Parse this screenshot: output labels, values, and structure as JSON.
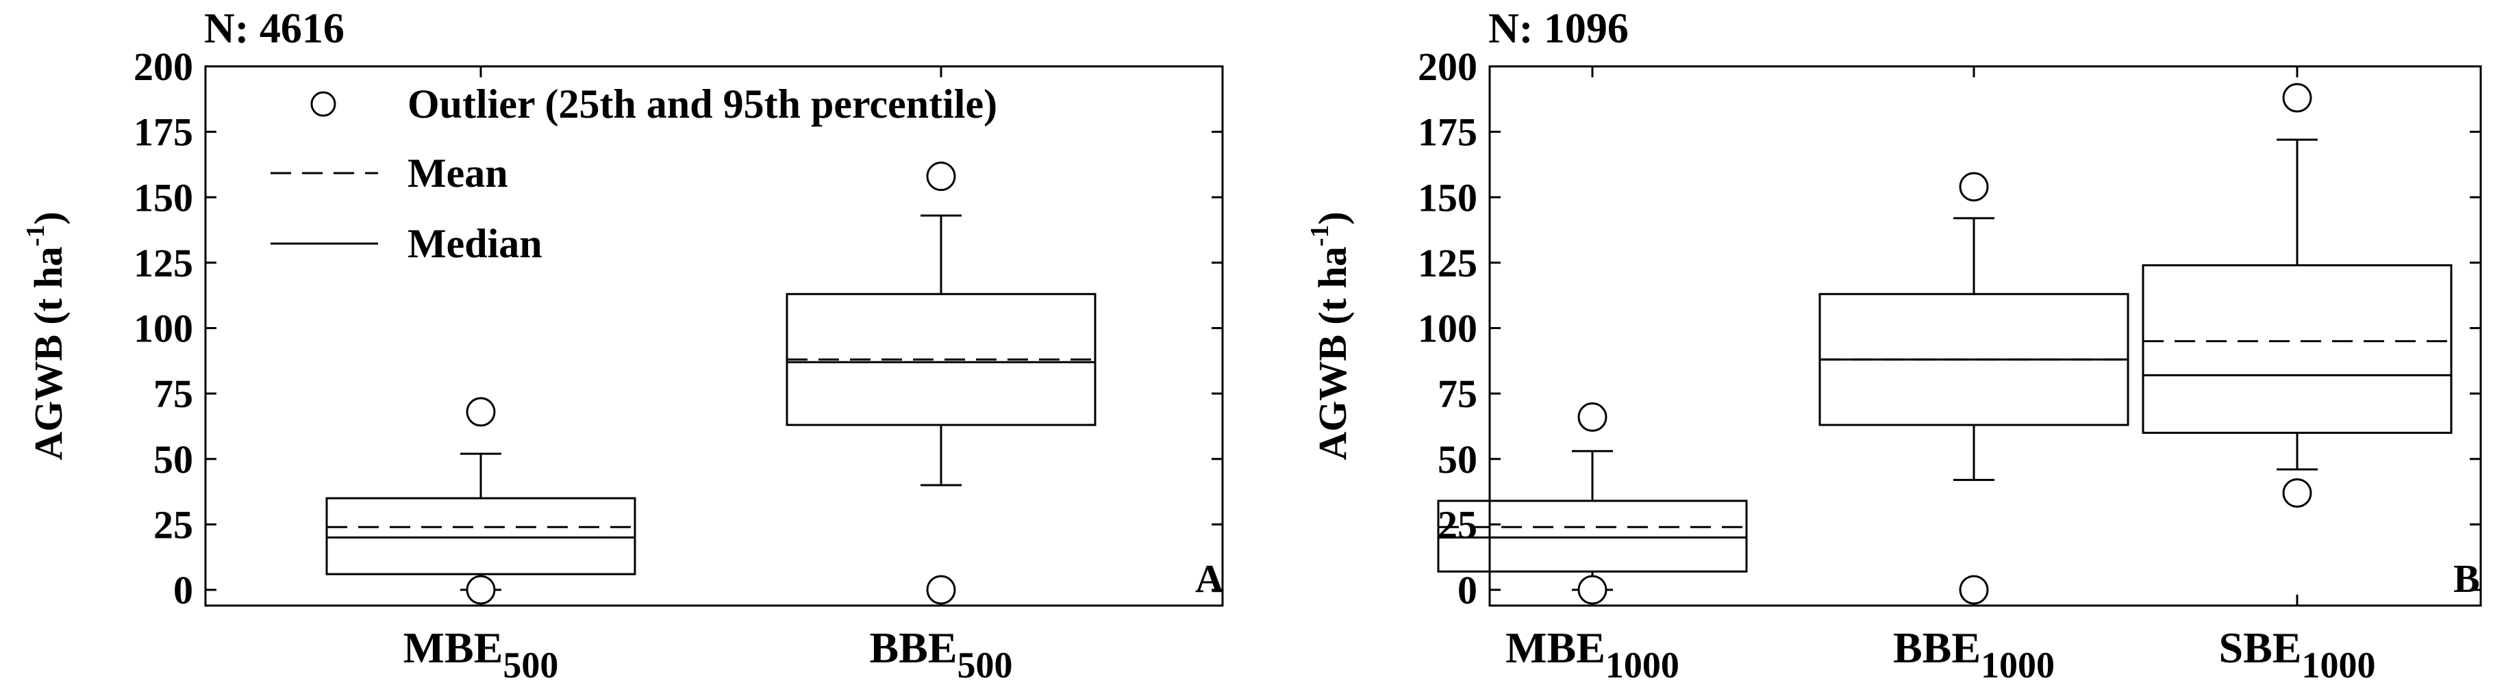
{
  "chart_data": [
    {
      "type": "box",
      "n_label": "N: 4616",
      "panel_label": "A",
      "ylabel": "AGWB (t ha-1)",
      "ylabel_main": "AGWB (t ha",
      "ylabel_sup": "-1",
      "ylabel_close": ")",
      "ylim": [
        0,
        200
      ],
      "yticks": [
        "0",
        "25",
        "50",
        "75",
        "100",
        "125",
        "150",
        "175",
        "200"
      ],
      "legend": {
        "position": "top-left",
        "outlier": "Outlier (25th and 95th percentile)",
        "mean": "Mean",
        "median": "Median"
      },
      "categories": [
        {
          "name": "MBE",
          "sub": "500",
          "q1": 6,
          "median": 20,
          "mean": 24,
          "q3": 35,
          "whisker_low": 0,
          "whisker_high": 52,
          "outliers": [
            0,
            68
          ]
        },
        {
          "name": "BBE",
          "sub": "500",
          "q1": 63,
          "median": 87,
          "mean": 88,
          "q3": 113,
          "whisker_low": 40,
          "whisker_high": 143,
          "outliers": [
            0,
            158
          ]
        }
      ]
    },
    {
      "type": "box",
      "n_label": "N: 1096",
      "panel_label": "B",
      "ylabel": "AGWB (t ha-1)",
      "ylabel_main": "AGWB (t ha",
      "ylabel_sup": "-1",
      "ylabel_close": ")",
      "ylim": [
        0,
        200
      ],
      "yticks": [
        "0",
        "25",
        "50",
        "75",
        "100",
        "125",
        "150",
        "175",
        "200"
      ],
      "categories": [
        {
          "name": "MBE",
          "sub": "1000",
          "q1": 7,
          "median": 20,
          "mean": 24,
          "q3": 34,
          "whisker_low": 0,
          "whisker_high": 53,
          "outliers": [
            0,
            66
          ]
        },
        {
          "name": "BBE",
          "sub": "1000",
          "q1": 63,
          "median": 88,
          "mean": 88,
          "q3": 113,
          "whisker_low": 42,
          "whisker_high": 142,
          "outliers": [
            0,
            154
          ]
        },
        {
          "name": "SBE",
          "sub": "1000",
          "q1": 60,
          "median": 82,
          "mean": 95,
          "q3": 124,
          "whisker_low": 46,
          "whisker_high": 172,
          "outliers": [
            37,
            188
          ]
        }
      ]
    }
  ]
}
